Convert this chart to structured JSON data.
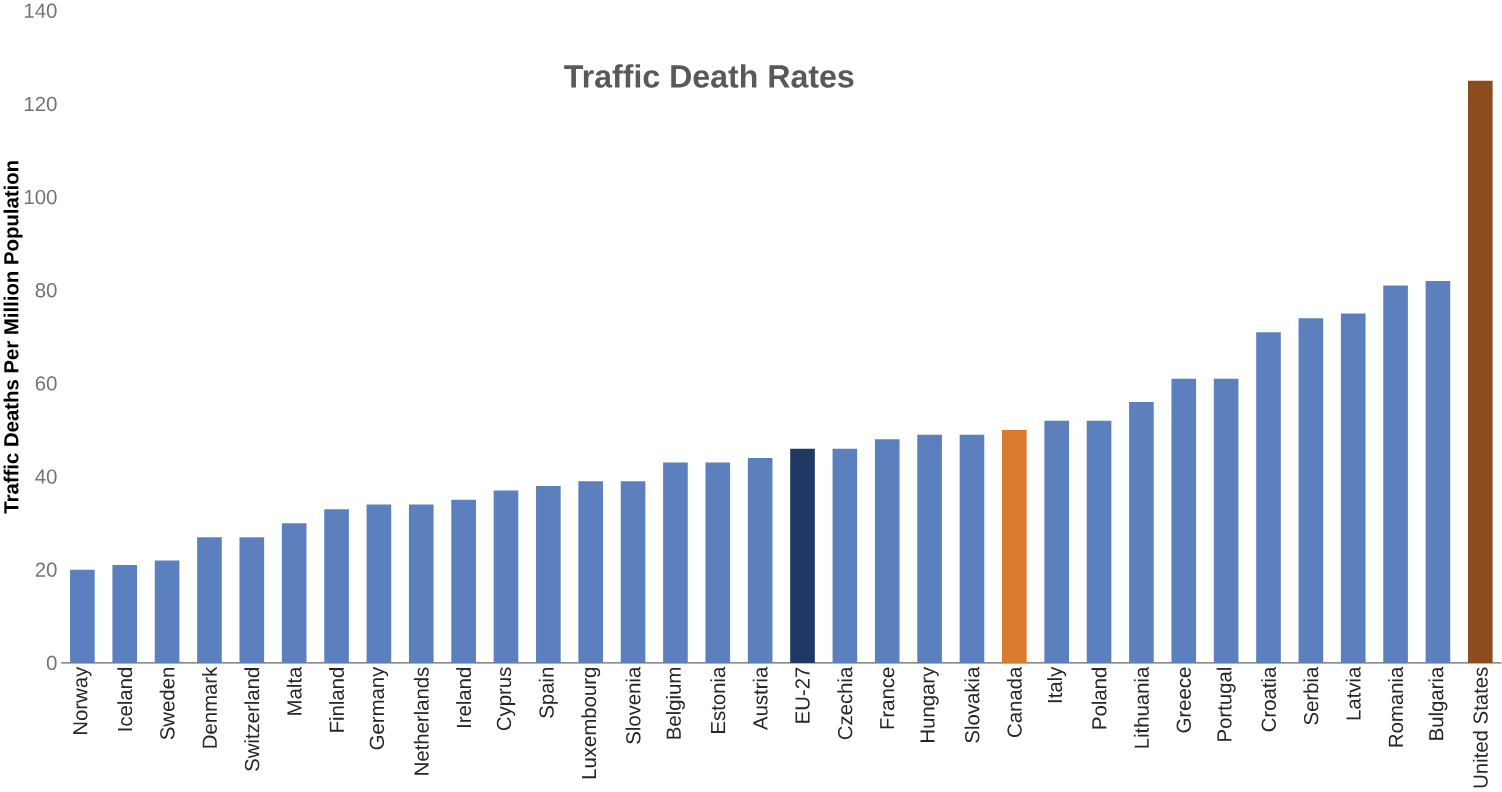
{
  "chart_data": {
    "type": "bar",
    "title": "Traffic Death Rates",
    "ylabel": "Traffic Deaths Per Million Population",
    "categories": [
      "Norway",
      "Iceland",
      "Sweden",
      "Denmark",
      "Switzerland",
      "Malta",
      "Finland",
      "Germany",
      "Netherlands",
      "Ireland",
      "Cyprus",
      "Spain",
      "Luxembourg",
      "Slovenia",
      "Belgium",
      "Estonia",
      "Austria",
      "EU-27",
      "Czechia",
      "France",
      "Hungary",
      "Slovakia",
      "Canada",
      "Italy",
      "Poland",
      "Lithuania",
      "Greece",
      "Portugal",
      "Croatia",
      "Serbia",
      "Latvia",
      "Romania",
      "Bulgaria",
      "United States"
    ],
    "values": [
      20,
      21,
      22,
      27,
      27,
      30,
      33,
      34,
      34,
      35,
      37,
      38,
      39,
      39,
      43,
      43,
      44,
      46,
      46,
      48,
      49,
      49,
      50,
      52,
      52,
      56,
      61,
      61,
      71,
      74,
      75,
      81,
      82,
      125
    ],
    "colors": [
      "#5b80bd",
      "#5b80bd",
      "#5b80bd",
      "#5b80bd",
      "#5b80bd",
      "#5b80bd",
      "#5b80bd",
      "#5b80bd",
      "#5b80bd",
      "#5b80bd",
      "#5b80bd",
      "#5b80bd",
      "#5b80bd",
      "#5b80bd",
      "#5b80bd",
      "#5b80bd",
      "#5b80bd",
      "#1f3864",
      "#5b80bd",
      "#5b80bd",
      "#5b80bd",
      "#5b80bd",
      "#d97a2e",
      "#5b80bd",
      "#5b80bd",
      "#5b80bd",
      "#5b80bd",
      "#5b80bd",
      "#5b80bd",
      "#5b80bd",
      "#5b80bd",
      "#5b80bd",
      "#5b80bd",
      "#8b4c1e"
    ],
    "ylim": [
      0,
      140
    ],
    "yticks": [
      0,
      20,
      40,
      60,
      80,
      100,
      120,
      140
    ]
  }
}
